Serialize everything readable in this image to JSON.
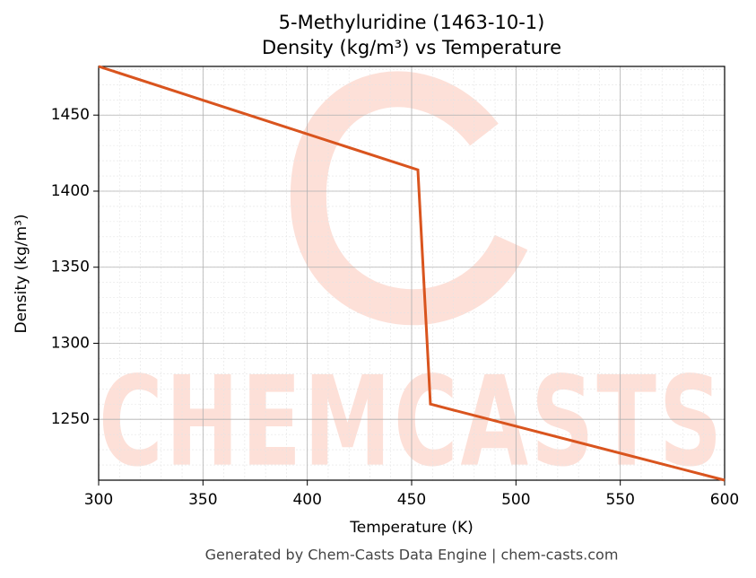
{
  "chart_data": {
    "type": "line",
    "title": "5-Methyluridine (1463-10-1)",
    "subtitle": "Density (kg/m³) vs Temperature",
    "x_label": "Temperature (K)",
    "y_label": "Density (kg/m³)",
    "footer": "Generated by Chem-Casts Data Engine | chem-casts.com",
    "watermark": "CHEMCASTS",
    "x": [
      300,
      453,
      459,
      600
    ],
    "series": [
      {
        "name": "Density",
        "color": "#d9541e",
        "values": [
          1482,
          1414,
          1260,
          1210
        ]
      }
    ],
    "xlim": [
      300,
      600
    ],
    "xticks": [
      300,
      350,
      400,
      450,
      500,
      550,
      600
    ],
    "ylim": [
      1210,
      1482
    ],
    "yticks": [
      1250,
      1300,
      1350,
      1400,
      1450
    ],
    "grid": true
  }
}
